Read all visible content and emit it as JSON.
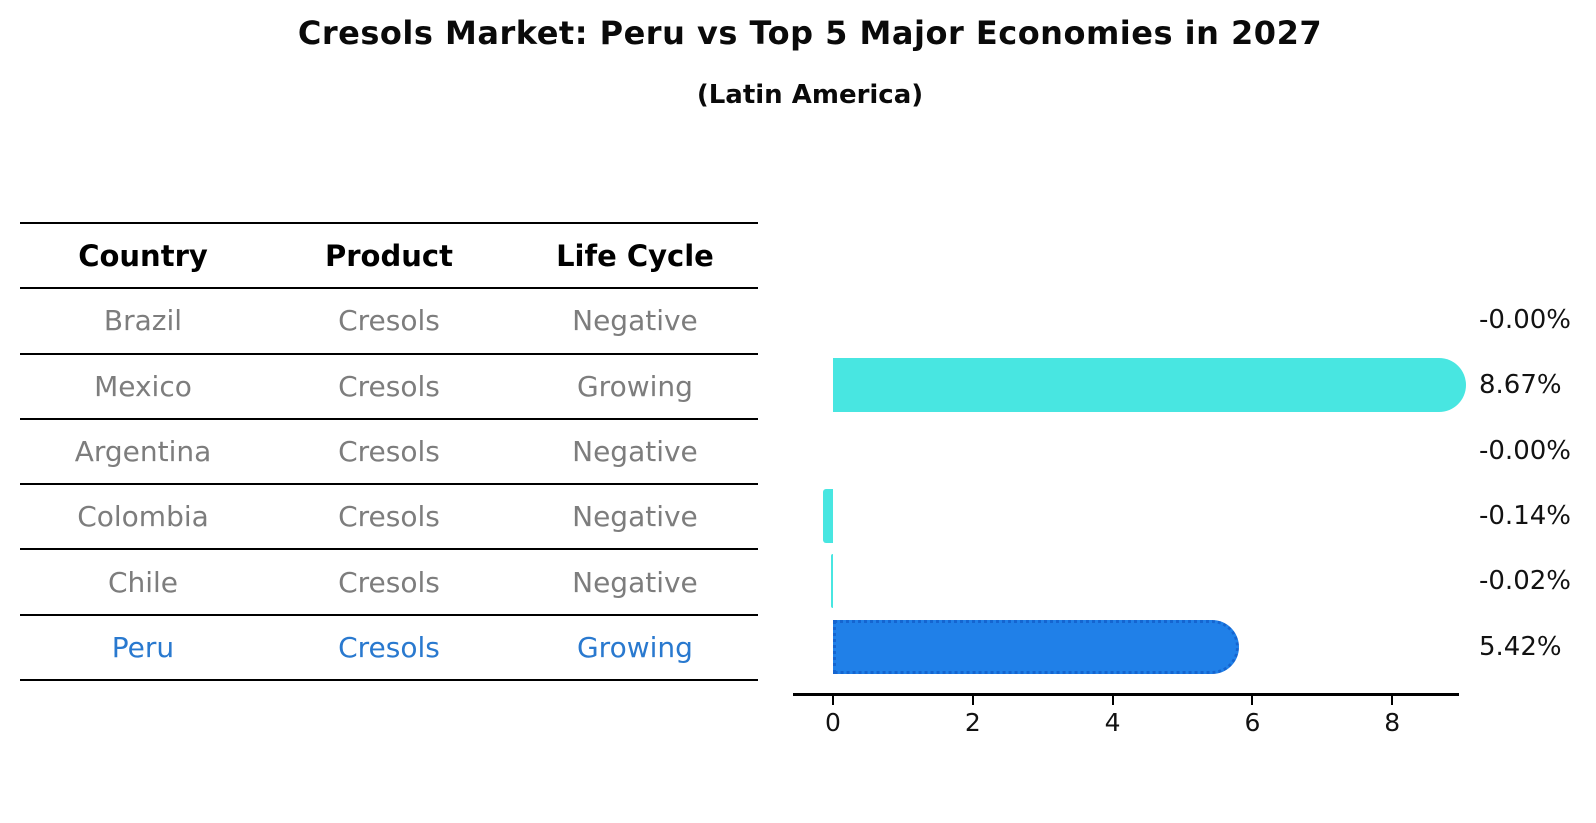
{
  "title": "Cresols Market: Peru vs Top 5 Major Economies in 2027",
  "subtitle": "(Latin America)",
  "table": {
    "columns": [
      "Country",
      "Product",
      "Life Cycle"
    ],
    "rows": [
      {
        "country": "Brazil",
        "product": "Cresols",
        "life_cycle": "Negative",
        "highlight": false
      },
      {
        "country": "Mexico",
        "product": "Cresols",
        "life_cycle": "Growing",
        "highlight": false
      },
      {
        "country": "Argentina",
        "product": "Cresols",
        "life_cycle": "Negative",
        "highlight": false
      },
      {
        "country": "Colombia",
        "product": "Cresols",
        "life_cycle": "Negative",
        "highlight": false
      },
      {
        "country": "Chile",
        "product": "Cresols",
        "life_cycle": "Negative",
        "highlight": false
      },
      {
        "country": "Peru",
        "product": "Cresols",
        "life_cycle": "Growing",
        "highlight": true
      }
    ]
  },
  "chart_data": {
    "type": "bar",
    "orientation": "horizontal",
    "title": "Cresols Market: Peru vs Top 5 Major Economies in 2027",
    "subtitle": "(Latin America)",
    "xlabel": "",
    "ylabel": "",
    "categories": [
      "Brazil",
      "Mexico",
      "Argentina",
      "Colombia",
      "Chile",
      "Peru"
    ],
    "values": [
      -0.0,
      8.67,
      -0.0,
      -0.14,
      -0.02,
      5.42
    ],
    "value_labels": [
      "-0.00%",
      "8.67%",
      "-0.00%",
      "-0.14%",
      "-0.02%",
      "5.42%"
    ],
    "xticks": [
      0,
      2,
      4,
      6,
      8
    ],
    "xlim": [
      -0.57,
      8.93
    ],
    "grid": false,
    "legend": false,
    "highlight_index": 5,
    "bar_color": "#48E6E1",
    "highlight_bar_color": "#2080E8",
    "highlight_edge_color": "#1565D0",
    "highlight_edge_style": "dotted"
  },
  "colors": {
    "header_text": "#000000",
    "row_text": "#7d7d7d",
    "highlight_text": "#2979cf",
    "axis": "#000000",
    "value_label_text": "#121212"
  }
}
